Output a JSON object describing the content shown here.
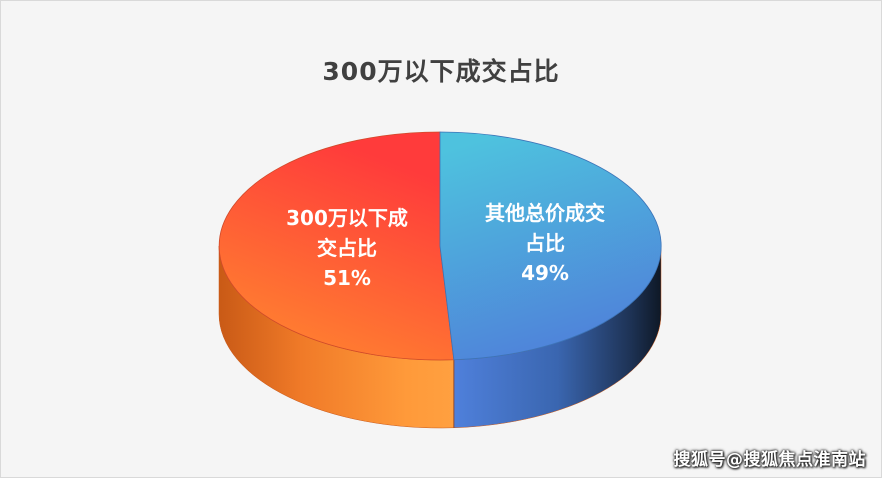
{
  "chart_data": {
    "type": "pie",
    "title": "300万以下成交占比",
    "slices": [
      {
        "label": "300万以下成交占比",
        "label_lines": [
          "300万以下成",
          "交占比"
        ],
        "value": 51,
        "value_label": "51%",
        "color": "#ff6a3a"
      },
      {
        "label": "其他总价成交占比",
        "label_lines": [
          "其他总价成交",
          "占比"
        ],
        "value": 49,
        "value_label": "49%",
        "color": "#4ab1e0"
      }
    ]
  },
  "watermark": "搜狐号@搜狐焦点淮南站"
}
